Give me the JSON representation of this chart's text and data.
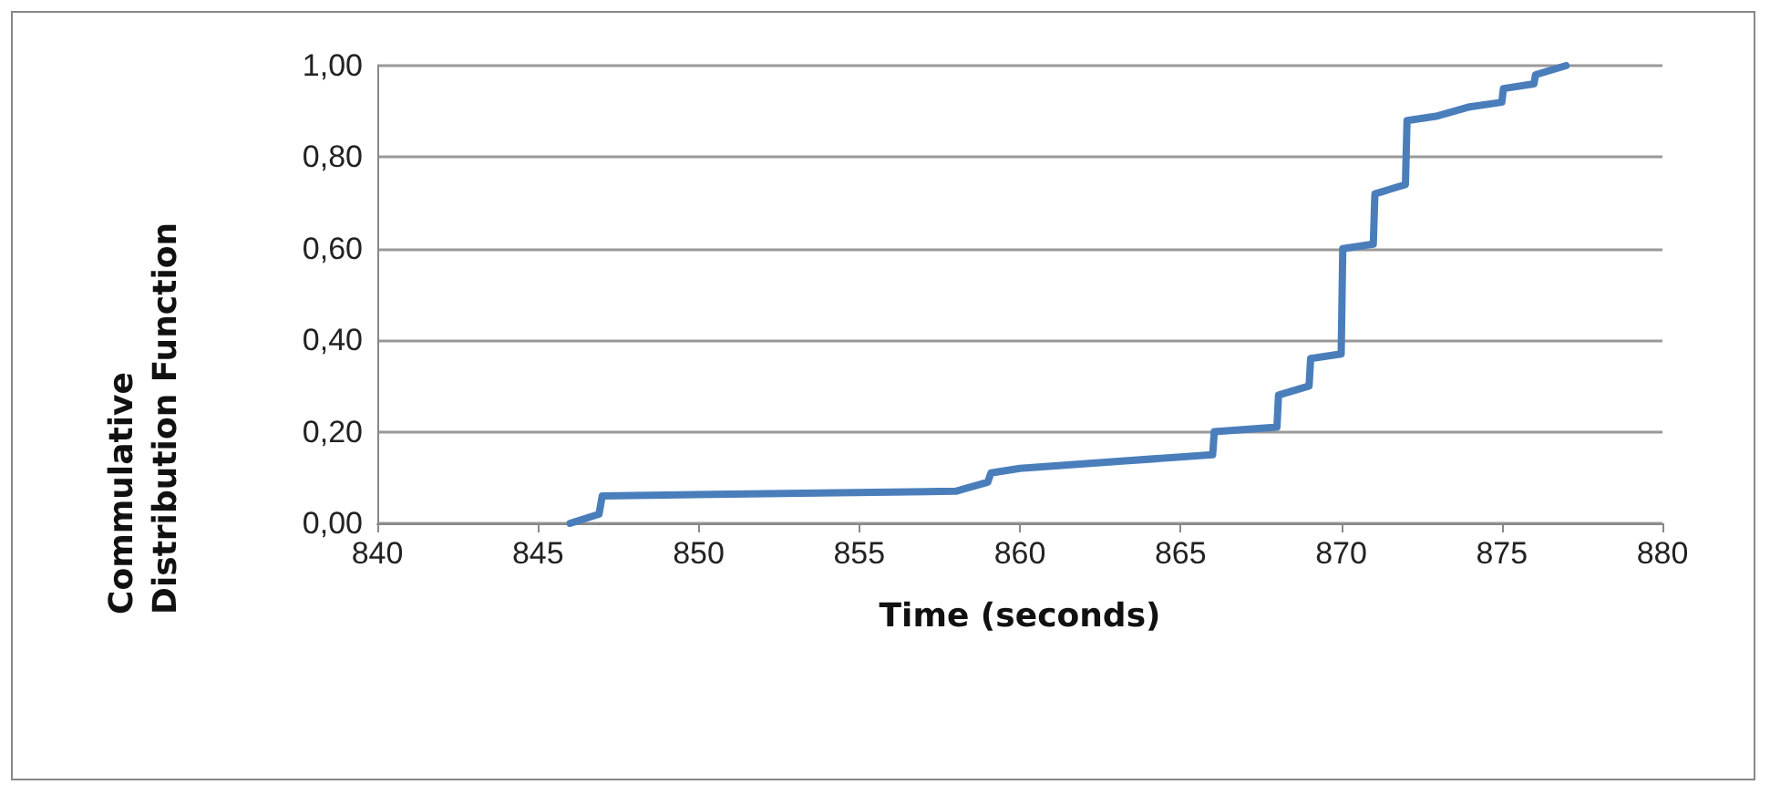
{
  "chart_data": {
    "type": "line",
    "xlabel": "Time (seconds)",
    "ylabel": "Commulative Distribution Function",
    "series": [
      {
        "color": "#4a7ebb",
        "x": [
          846,
          846.9,
          847,
          858,
          859,
          859.1,
          860,
          866,
          866.05,
          868,
          868.05,
          869,
          869.05,
          870,
          870.05,
          871,
          871.05,
          872,
          872.05,
          873,
          874,
          875,
          875.05,
          876,
          876.05,
          877
        ],
        "values": [
          0.0,
          0.02,
          0.06,
          0.07,
          0.09,
          0.11,
          0.12,
          0.15,
          0.2,
          0.21,
          0.28,
          0.3,
          0.36,
          0.37,
          0.6,
          0.61,
          0.72,
          0.74,
          0.88,
          0.89,
          0.91,
          0.92,
          0.95,
          0.96,
          0.98,
          1.0
        ]
      }
    ],
    "xlim": [
      840,
      880
    ],
    "xticks": [
      840,
      845,
      850,
      855,
      860,
      865,
      870,
      875,
      880
    ],
    "ylim": [
      0,
      1
    ],
    "yticks": [
      {
        "value": 0,
        "label": "0,00"
      },
      {
        "value": 0.2,
        "label": "0,20"
      },
      {
        "value": 0.4,
        "label": "0,40"
      },
      {
        "value": 0.6,
        "label": "0,60"
      },
      {
        "value": 0.8,
        "label": "0,80"
      },
      {
        "value": 1,
        "label": "1,00"
      }
    ],
    "grid": "y",
    "marker": "none",
    "line_style": "solid"
  }
}
